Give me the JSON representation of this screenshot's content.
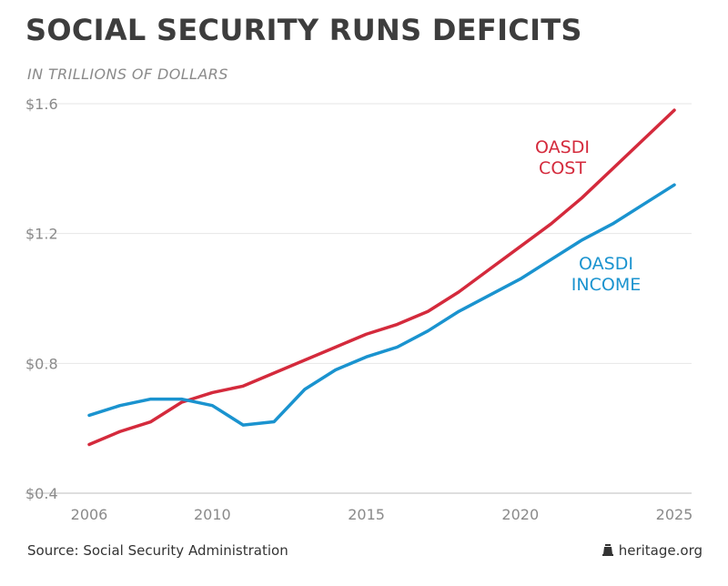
{
  "header": {
    "title": "SOCIAL SECURITY RUNS DEFICITS",
    "subtitle": "IN TRILLIONS OF DOLLARS"
  },
  "footer": {
    "source": "Source: Social Security Administration",
    "brand": "heritage.org",
    "brand_icon": "liberty-bell-icon"
  },
  "chart_data": {
    "type": "line",
    "title": "SOCIAL SECURITY RUNS DEFICITS",
    "subtitle": "IN TRILLIONS OF DOLLARS",
    "xlabel": "",
    "ylabel": "",
    "xlim": [
      2006,
      2025
    ],
    "ylim": [
      0.4,
      1.6
    ],
    "x_ticks": [
      2006,
      2010,
      2015,
      2020,
      2025
    ],
    "x_tick_labels": [
      "2006",
      "2010",
      "2015",
      "2020",
      "2025"
    ],
    "y_ticks": [
      0.4,
      0.8,
      1.2,
      1.6
    ],
    "y_tick_labels": [
      "$0.4",
      "$0.8",
      "$1.2",
      "$1.6"
    ],
    "grid": true,
    "legend": "direct labels on lines",
    "x": [
      2006,
      2007,
      2008,
      2009,
      2010,
      2011,
      2012,
      2013,
      2014,
      2015,
      2016,
      2017,
      2018,
      2019,
      2020,
      2021,
      2022,
      2023,
      2024,
      2025
    ],
    "series": [
      {
        "name": "OASDI COST",
        "label_lines": [
          "OASDI",
          "COST"
        ],
        "color": "#d42a3c",
        "values": [
          0.55,
          0.59,
          0.62,
          0.68,
          0.71,
          0.73,
          0.77,
          0.81,
          0.85,
          0.89,
          0.92,
          0.96,
          1.02,
          1.09,
          1.16,
          1.23,
          1.31,
          1.4,
          1.49,
          1.58
        ]
      },
      {
        "name": "OASDI INCOME",
        "label_lines": [
          "OASDI",
          "INCOME"
        ],
        "color": "#1a93cf",
        "values": [
          0.64,
          0.67,
          0.69,
          0.69,
          0.67,
          0.61,
          0.62,
          0.72,
          0.78,
          0.82,
          0.85,
          0.9,
          0.96,
          1.01,
          1.06,
          1.12,
          1.18,
          1.23,
          1.29,
          1.35
        ]
      }
    ]
  }
}
